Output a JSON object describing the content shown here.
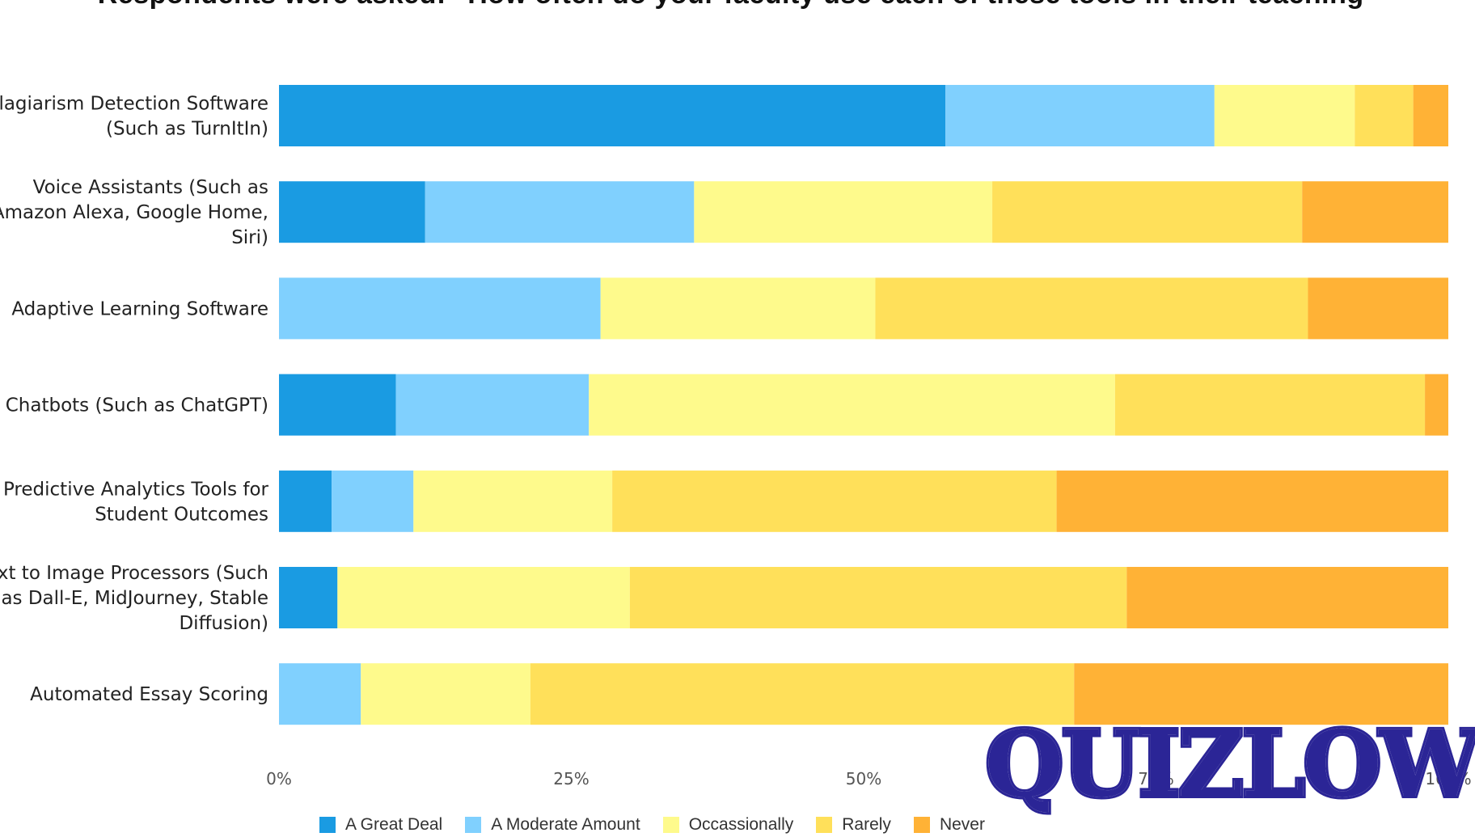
{
  "chart_data": {
    "type": "bar",
    "orientation": "horizontal",
    "stacked": true,
    "title": "Respondents were asked: \"How often do your faculty use each of these tools in their teaching\"",
    "categories": [
      "Plagiarism Detection Software (Such as TurnItIn)",
      "Voice Assistants (Such as Amazon Alexa, Google Home, Siri)",
      "Adaptive Learning Software",
      "Chatbots (Such as ChatGPT)",
      "Predictive Analytics Tools for Student Outcomes",
      "Text to Image Processors (Such as Dall-E, MidJourney, Stable Diffusion)",
      "Automated Essay Scoring"
    ],
    "category_lines": [
      [
        "Plagiarism Detection Software",
        "(Such as TurnItIn)"
      ],
      [
        "Voice Assistants (Such as",
        "Amazon Alexa, Google Home,",
        "Siri)"
      ],
      [
        "Adaptive Learning Software"
      ],
      [
        "Chatbots (Such as ChatGPT)"
      ],
      [
        "Predictive Analytics Tools for",
        "Student Outcomes"
      ],
      [
        "Text to Image Processors (Such",
        "as Dall-E, MidJourney, Stable",
        "Diffusion)"
      ],
      [
        "Automated Essay Scoring"
      ]
    ],
    "series": [
      {
        "name": "A Great Deal",
        "color": "#1a9be2",
        "values": [
          57,
          12.5,
          0,
          10,
          4.5,
          5,
          0
        ]
      },
      {
        "name": "A Moderate Amount",
        "color": "#80d0fe",
        "values": [
          23,
          23,
          27.5,
          16.5,
          7,
          0,
          7
        ]
      },
      {
        "name": "Occassionally",
        "color": "#fefa8c",
        "values": [
          12,
          25.5,
          23.5,
          45,
          17,
          25,
          14.5
        ]
      },
      {
        "name": "Rarely",
        "color": "#ffe05a",
        "values": [
          5,
          26.5,
          37,
          26.5,
          38,
          42.5,
          46.5
        ]
      },
      {
        "name": "Never",
        "color": "#ffb236",
        "values": [
          3,
          12.5,
          12,
          2,
          33.5,
          27.5,
          32
        ]
      }
    ],
    "xlim": [
      0,
      100
    ],
    "xticks": [
      "0%",
      "25%",
      "50%",
      "75%",
      "100%"
    ],
    "xlabel": "",
    "ylabel": "",
    "grid": false,
    "legend_position": "bottom"
  },
  "watermark": {
    "text": "QUIZLOW"
  }
}
